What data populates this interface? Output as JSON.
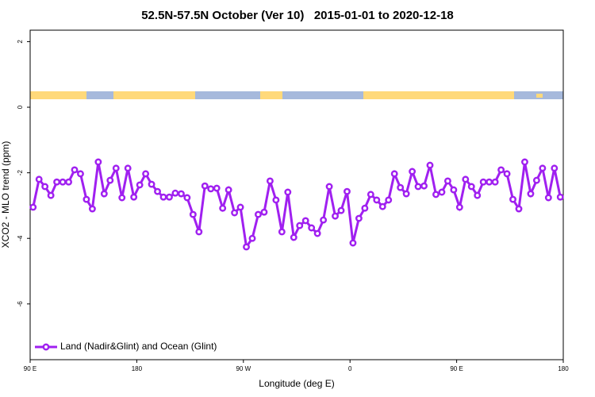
{
  "chart_data": {
    "type": "line",
    "title": "52.5N-57.5N October (Ver 10)   2015-01-01 to 2020-12-18",
    "x_label": "Longitude (deg E)",
    "y_label": "XCO2 - MLO trend (ppm)",
    "xlim": [
      90,
      540
    ],
    "ylim": [
      -7.7,
      2.35
    ],
    "xticks": [
      {
        "value": 90,
        "label": "90 E"
      },
      180,
      {
        "value": 270,
        "label": "90 W"
      },
      {
        "value": 360,
        "label": "0"
      },
      {
        "value": 450,
        "label": "90 E"
      },
      {
        "value": 540,
        "label": "180"
      }
    ],
    "yticks": [
      2,
      0,
      -2,
      -4,
      -6
    ],
    "legend": "bottom-left",
    "x": [
      92.5,
      97.5,
      102.5,
      107.5,
      112.5,
      117.5,
      122.5,
      127.5,
      132.5,
      137.5,
      142.5,
      147.5,
      152.5,
      157.5,
      162.5,
      167.5,
      172.5,
      177.5,
      182.5,
      187.5,
      192.5,
      197.5,
      202.5,
      207.5,
      212.5,
      217.5,
      222.5,
      227.5,
      232.5,
      237.5,
      242.5,
      247.5,
      252.5,
      257.5,
      262.5,
      267.5,
      272.5,
      277.5,
      282.5,
      287.5,
      292.5,
      297.5,
      302.5,
      307.5,
      312.5,
      317.5,
      322.5,
      327.5,
      332.5,
      337.5,
      342.5,
      347.5,
      352.5,
      357.5,
      362.5,
      367.5,
      372.5,
      377.5,
      382.5,
      387.5,
      392.5,
      397.5,
      402.5,
      407.5,
      412.5,
      417.5,
      422.5,
      427.5,
      432.5,
      437.5,
      442.5,
      447.5,
      452.5,
      457.5,
      462.5,
      467.5,
      472.5,
      477.5,
      482.5,
      487.5,
      492.5,
      497.5,
      502.5,
      507.5,
      512.5,
      517.5,
      522.5,
      527.5,
      532.5,
      537.5
    ],
    "series": [
      {
        "name": "Land (Nadir&Glint) and Ocean (Glint)",
        "color": "#a020f0",
        "values": [
          -3.05,
          -2.2,
          -2.42,
          -2.69,
          -2.28,
          -2.28,
          -2.28,
          -1.91,
          -2.03,
          -2.81,
          -3.1,
          -1.67,
          -2.64,
          -2.23,
          -1.86,
          -2.76,
          -1.86,
          -2.74,
          -2.37,
          -2.03,
          -2.35,
          -2.57,
          -2.74,
          -2.74,
          -2.62,
          -2.64,
          -2.76,
          -3.27,
          -3.8,
          -2.4,
          -2.49,
          -2.47,
          -3.08,
          -2.52,
          -3.22,
          -3.05,
          -4.26,
          -4.0,
          -3.27,
          -3.2,
          -2.25,
          -2.83,
          -3.8,
          -2.59,
          -3.97,
          -3.61,
          -3.46,
          -3.68,
          -3.85,
          -3.44,
          -2.42,
          -3.32,
          -3.15,
          -2.57,
          -4.14,
          -3.39,
          -3.08,
          -2.66,
          -2.83,
          -3.03,
          -2.83,
          -2.03,
          -2.45,
          -2.64,
          -1.96,
          -2.42,
          -2.4,
          -1.77,
          -2.66,
          -2.59,
          -2.25,
          -2.52,
          -3.05,
          -2.2,
          -2.42,
          -2.69,
          -2.28,
          -2.28,
          -2.28,
          -1.91,
          -2.03,
          -2.81,
          -3.1,
          -1.67,
          -2.64,
          -2.23,
          -1.86,
          -2.76,
          -1.86,
          -2.74
        ]
      }
    ]
  }
}
